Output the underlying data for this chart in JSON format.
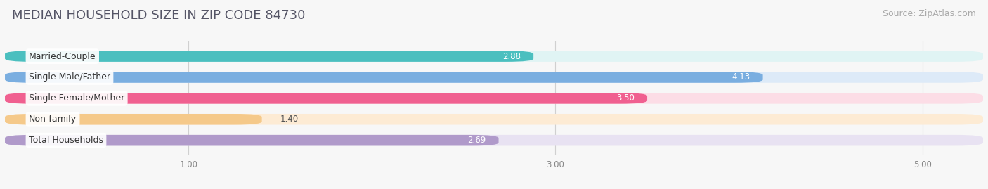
{
  "title": "MEDIAN HOUSEHOLD SIZE IN ZIP CODE 84730",
  "source": "Source: ZipAtlas.com",
  "categories": [
    "Married-Couple",
    "Single Male/Father",
    "Single Female/Mother",
    "Non-family",
    "Total Households"
  ],
  "values": [
    2.88,
    4.13,
    3.5,
    1.4,
    2.69
  ],
  "bar_colors": [
    "#4bbfbf",
    "#7aaee0",
    "#f06090",
    "#f5c98a",
    "#b09aca"
  ],
  "bar_bg_colors": [
    "#e0f4f4",
    "#ddeaf8",
    "#fcdde6",
    "#fdebd4",
    "#e8e2f2"
  ],
  "value_colors_inside": [
    "#4bbfbf",
    "#7aaee0",
    "#f06090",
    "#555555",
    "#b09aca"
  ],
  "xlim_start": 0,
  "xlim_end": 5.33,
  "xtick_vals": [
    1.0,
    3.0,
    5.0
  ],
  "xtick_labels": [
    "1.00",
    "3.00",
    "5.00"
  ],
  "title_fontsize": 13,
  "source_fontsize": 9,
  "label_fontsize": 9,
  "value_fontsize": 8.5,
  "bar_height": 0.52,
  "bar_gap": 0.95,
  "background_color": "#f7f7f7"
}
